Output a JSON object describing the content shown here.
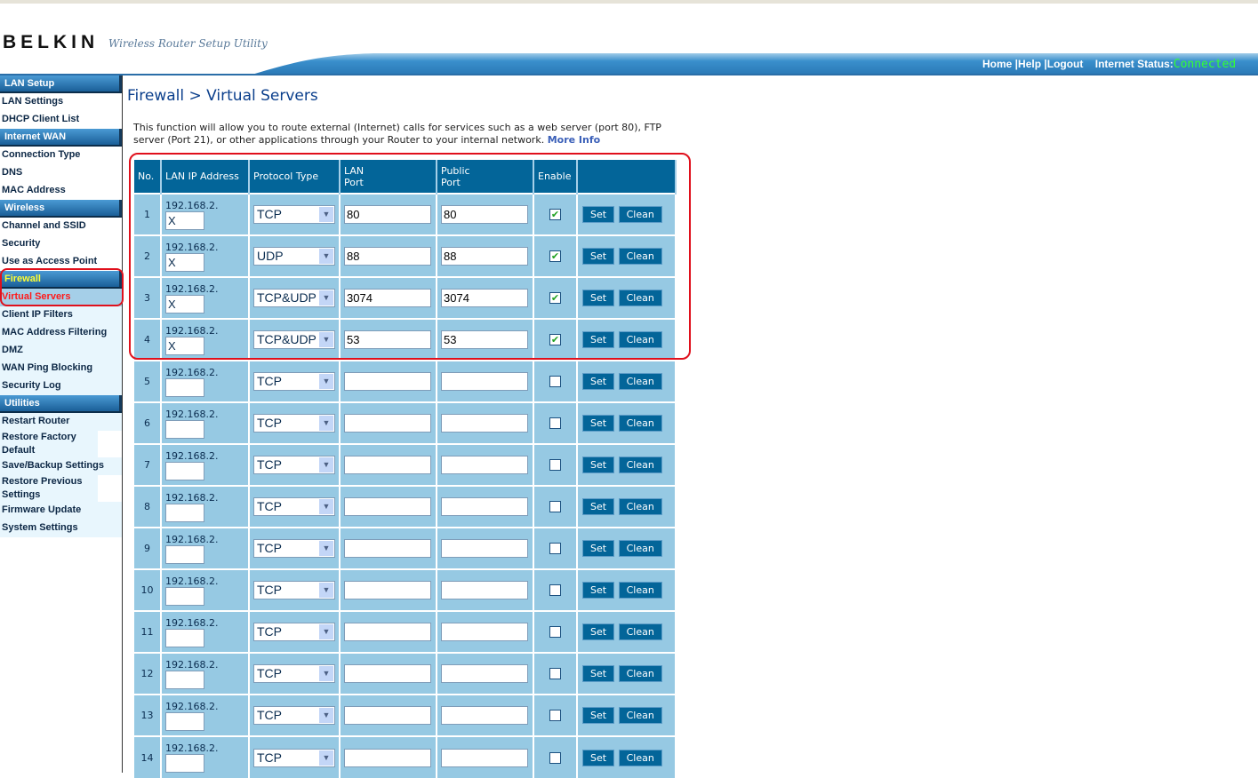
{
  "header": {
    "logo": "BELKIN",
    "tagline": "Wireless Router Setup Utility",
    "nav": [
      "Home |",
      "Help |",
      "Logout"
    ],
    "status_label": "Internet Status:",
    "status_value": "Connected",
    "status_color": "#33ff33"
  },
  "sidebar": [
    {
      "title": "LAN Setup",
      "items": [
        "LAN Settings",
        "DHCP Client List"
      ]
    },
    {
      "title": "Internet WAN",
      "items": [
        "Connection Type",
        "DNS",
        "MAC Address"
      ]
    },
    {
      "title": "Wireless",
      "items": [
        "Channel and SSID",
        "Security",
        "Use as Access Point"
      ]
    },
    {
      "title": "Firewall",
      "items": [
        "Virtual Servers",
        "Client IP Filters",
        "MAC Address Filtering",
        "DMZ",
        "WAN Ping Blocking",
        "Security Log"
      ],
      "active": "Virtual Servers"
    },
    {
      "title": "Utilities",
      "items": [
        "Restart Router",
        "Restore Factory Default",
        "Save/Backup Settings",
        "Restore Previous Settings",
        "Firmware Update",
        "System Settings"
      ]
    }
  ],
  "page": {
    "title": "Firewall > Virtual Servers",
    "description": "This function will allow you to route external (Internet) calls for services such as a web server (port 80), FTP server (Port 21), or other applications through your Router to your internal network.",
    "more_info": "More Info"
  },
  "table": {
    "columns": [
      "No.",
      "LAN IP Address",
      "Protocol Type",
      "LAN Port",
      "Public Port",
      "Enable",
      ""
    ],
    "ip_prefix": "192.168.2.",
    "set_label": "Set",
    "clean_label": "Clean",
    "rows": [
      {
        "no": "1",
        "ip": "X",
        "protocol": "TCP",
        "lan_port": "80",
        "public_port": "80",
        "enabled": true
      },
      {
        "no": "2",
        "ip": "X",
        "protocol": "UDP",
        "lan_port": "88",
        "public_port": "88",
        "enabled": true
      },
      {
        "no": "3",
        "ip": "X",
        "protocol": "TCP&UDP",
        "lan_port": "3074",
        "public_port": "3074",
        "enabled": true
      },
      {
        "no": "4",
        "ip": "X",
        "protocol": "TCP&UDP",
        "lan_port": "53",
        "public_port": "53",
        "enabled": true
      },
      {
        "no": "5",
        "ip": "",
        "protocol": "TCP",
        "lan_port": "",
        "public_port": "",
        "enabled": false
      },
      {
        "no": "6",
        "ip": "",
        "protocol": "TCP",
        "lan_port": "",
        "public_port": "",
        "enabled": false
      },
      {
        "no": "7",
        "ip": "",
        "protocol": "TCP",
        "lan_port": "",
        "public_port": "",
        "enabled": false
      },
      {
        "no": "8",
        "ip": "",
        "protocol": "TCP",
        "lan_port": "",
        "public_port": "",
        "enabled": false
      },
      {
        "no": "9",
        "ip": "",
        "protocol": "TCP",
        "lan_port": "",
        "public_port": "",
        "enabled": false
      },
      {
        "no": "10",
        "ip": "",
        "protocol": "TCP",
        "lan_port": "",
        "public_port": "",
        "enabled": false
      },
      {
        "no": "11",
        "ip": "",
        "protocol": "TCP",
        "lan_port": "",
        "public_port": "",
        "enabled": false
      },
      {
        "no": "12",
        "ip": "",
        "protocol": "TCP",
        "lan_port": "",
        "public_port": "",
        "enabled": false
      },
      {
        "no": "13",
        "ip": "",
        "protocol": "TCP",
        "lan_port": "",
        "public_port": "",
        "enabled": false
      },
      {
        "no": "14",
        "ip": "",
        "protocol": "TCP",
        "lan_port": "",
        "public_port": "",
        "enabled": false
      }
    ]
  }
}
